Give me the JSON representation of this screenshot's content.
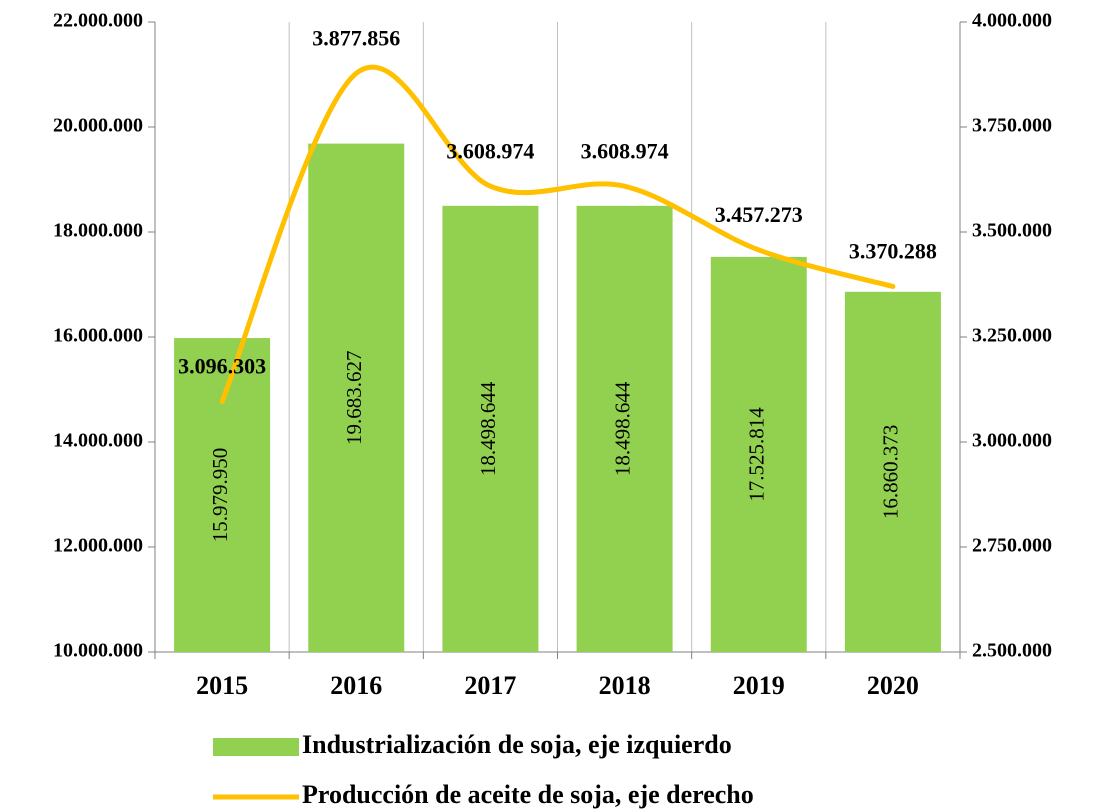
{
  "chart_data": {
    "type": "bar-line",
    "categories": [
      "2015",
      "2016",
      "2017",
      "2018",
      "2019",
      "2020"
    ],
    "series": [
      {
        "name": "Industrialización de soja, eje izquierdo",
        "color": "#92d050",
        "type": "bar",
        "values": [
          15979950,
          19683627,
          18498644,
          18498644,
          17525814,
          16860373
        ],
        "value_labels": [
          "15.979.950",
          "19.683.627",
          "18.498.644",
          "18.498.644",
          "17.525.814",
          "16.860.373"
        ]
      },
      {
        "name": "Producción de aceite de soja, eje derecho",
        "color": "#ffc000",
        "type": "line",
        "axis": "y2",
        "values": [
          3096303,
          3877856,
          3608974,
          3608974,
          3457273,
          3370288
        ],
        "value_labels": [
          "3.096.303",
          "3.877.856",
          "3.608.974",
          "3.608.974",
          "3.457.273",
          "3.370.288"
        ]
      }
    ],
    "ylim": [
      10000000,
      22000000
    ],
    "yticks": [
      {
        "value": 10000000,
        "label": "10.000.000"
      },
      {
        "value": 12000000,
        "label": "12.000.000"
      },
      {
        "value": 14000000,
        "label": "14.000.000"
      },
      {
        "value": 16000000,
        "label": "16.000.000"
      },
      {
        "value": 18000000,
        "label": "18.000.000"
      },
      {
        "value": 20000000,
        "label": "20.000.000"
      },
      {
        "value": 22000000,
        "label": "22.000.000"
      }
    ],
    "y2lim": [
      2500000,
      4000000
    ],
    "y2ticks": [
      {
        "value": 2500000,
        "label": "2.500.000"
      },
      {
        "value": 2750000,
        "label": "2.750.000"
      },
      {
        "value": 3000000,
        "label": "3.000.000"
      },
      {
        "value": 3250000,
        "label": "3.250.000"
      },
      {
        "value": 3500000,
        "label": "3.500.000"
      },
      {
        "value": 3750000,
        "label": "3.750.000"
      },
      {
        "value": 4000000,
        "label": "4.000.000"
      }
    ],
    "legend": "bottom"
  }
}
